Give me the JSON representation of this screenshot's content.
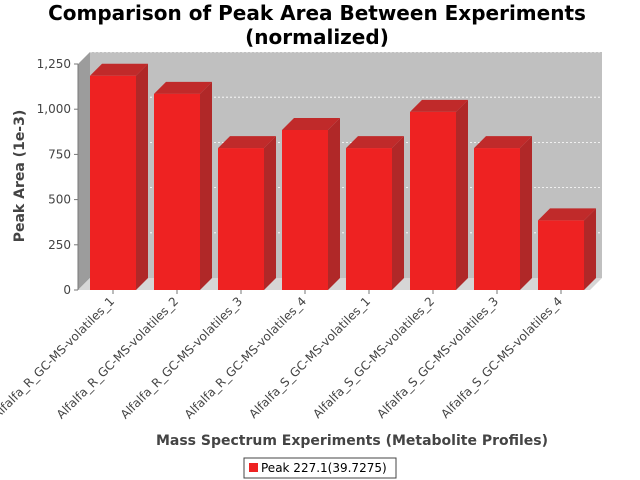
{
  "chart_data": {
    "type": "bar",
    "title": "Comparison of Peak Area Between Experiments",
    "subtitle": "(normalized)",
    "xlabel": "Mass Spectrum Experiments (Metabolite Profiles)",
    "ylabel": "Peak Area (1e-3)",
    "ylim": [
      0,
      1250
    ],
    "yticks": [
      0,
      250,
      500,
      750,
      1000,
      1250
    ],
    "ytick_labels": [
      "0",
      "250",
      "500",
      "750",
      "1,000",
      "1,250"
    ],
    "grid": true,
    "legend_position": "bottom",
    "categories": [
      "Alfalfa_R_GC-MS-volatiles_1",
      "Alfalfa_R_GC-MS-volatiles_2",
      "Alfalfa_R_GC-MS-volatiles_3",
      "Alfalfa_R_GC-MS-volatiles_4",
      "Alfalfa_S_GC-MS-volatiles_1",
      "Alfalfa_S_GC-MS-volatiles_2",
      "Alfalfa_S_GC-MS-volatiles_3",
      "Alfalfa_S_GC-MS-volatiles_4"
    ],
    "series": [
      {
        "name": "Peak 227.1(39.7275)",
        "color": "#ee2222",
        "values": [
          1185,
          1085,
          785,
          885,
          785,
          985,
          785,
          385
        ]
      }
    ]
  }
}
